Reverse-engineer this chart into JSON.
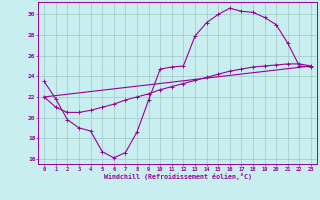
{
  "xlabel": "Windchill (Refroidissement éolien,°C)",
  "background_color": "#c8eef0",
  "line_color": "#990099",
  "grid_color": "#a0c8c8",
  "xlim": [
    -0.5,
    23.5
  ],
  "ylim": [
    15.5,
    31.2
  ],
  "xticks": [
    0,
    1,
    2,
    3,
    4,
    5,
    6,
    7,
    8,
    9,
    10,
    11,
    12,
    13,
    14,
    15,
    16,
    17,
    18,
    19,
    20,
    21,
    22,
    23
  ],
  "yticks": [
    16,
    18,
    20,
    22,
    24,
    26,
    28,
    30
  ],
  "line1_x": [
    0,
    1,
    2,
    3,
    4,
    5,
    6,
    7,
    8,
    9,
    10,
    11,
    12,
    13,
    14,
    15,
    16,
    17,
    18,
    19,
    20,
    21,
    22,
    23
  ],
  "line1_y": [
    23.5,
    21.8,
    19.8,
    19.0,
    18.7,
    16.7,
    16.1,
    16.6,
    18.6,
    21.7,
    24.7,
    24.9,
    25.0,
    27.9,
    29.2,
    30.0,
    30.6,
    30.3,
    30.2,
    29.7,
    29.0,
    27.2,
    25.0,
    24.9
  ],
  "line2_x": [
    0,
    1,
    2,
    3,
    4,
    5,
    6,
    7,
    8,
    9,
    10,
    11,
    12,
    13,
    14,
    15,
    16,
    17,
    18,
    19,
    20,
    21,
    22,
    23
  ],
  "line2_y": [
    22.0,
    21.0,
    20.5,
    20.5,
    20.7,
    21.0,
    21.3,
    21.7,
    22.0,
    22.3,
    22.7,
    23.0,
    23.3,
    23.6,
    23.9,
    24.2,
    24.5,
    24.7,
    24.9,
    25.0,
    25.1,
    25.2,
    25.2,
    25.0
  ],
  "line3_x": [
    0,
    23
  ],
  "line3_y": [
    22.0,
    25.0
  ]
}
